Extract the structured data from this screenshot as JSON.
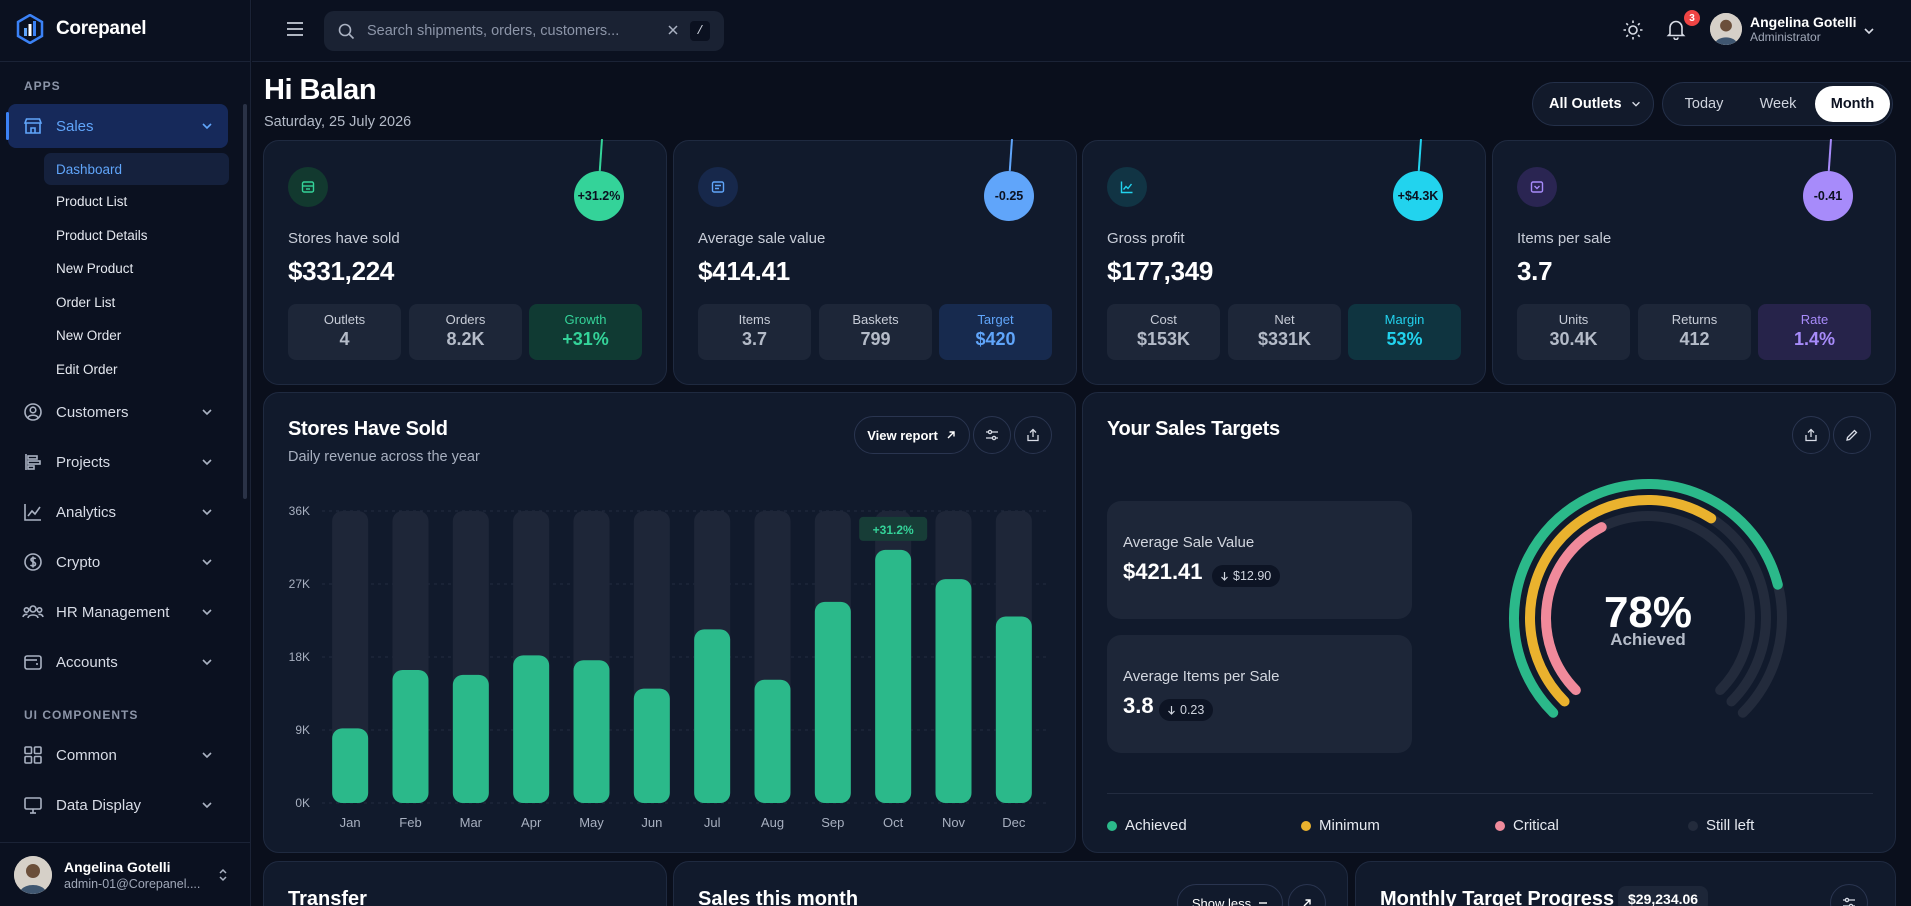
{
  "app": {
    "name": "Corepanel"
  },
  "sidebar": {
    "sections": {
      "apps": "APPS",
      "ui_components": "UI COMPONENTS"
    },
    "items": [
      {
        "label": "Sales",
        "icon": "store-icon"
      },
      {
        "label": "Customers",
        "icon": "user-circle-icon"
      },
      {
        "label": "Projects",
        "icon": "projects-icon"
      },
      {
        "label": "Analytics",
        "icon": "analytics-icon"
      },
      {
        "label": "Crypto",
        "icon": "dollar-icon"
      },
      {
        "label": "HR Management",
        "icon": "people-icon"
      },
      {
        "label": "Accounts",
        "icon": "wallet-icon"
      },
      {
        "label": "Common",
        "icon": "grid-icon"
      },
      {
        "label": "Data Display",
        "icon": "monitor-icon"
      }
    ],
    "sales_submenu": [
      "Dashboard",
      "Product List",
      "Product Details",
      "New Product",
      "Order List",
      "New Order",
      "Edit Order"
    ],
    "user": {
      "name": "Angelina Gotelli",
      "email": "admin-01@Corepanel...."
    }
  },
  "topbar": {
    "search_placeholder": "Search shipments, orders, customers...",
    "search_shortcut": "/",
    "notification_count": "3",
    "user": {
      "name": "Angelina Gotelli",
      "role": "Administrator"
    }
  },
  "header": {
    "greeting": "Hi Balan",
    "date": "Saturday, 25 July 2026",
    "outlet_filter": "All Outlets",
    "periods": [
      "Today",
      "Week",
      "Month"
    ],
    "active_period": "Month"
  },
  "stats": [
    {
      "label": "Stores have sold",
      "value": "$331,224",
      "bubble": "+31.2%",
      "color": "#34d399",
      "minis": [
        {
          "label": "Outlets",
          "value": "4"
        },
        {
          "label": "Orders",
          "value": "8.2K"
        },
        {
          "label": "Growth",
          "value": "+31%"
        }
      ]
    },
    {
      "label": "Average sale value",
      "value": "$414.41",
      "bubble": "-0.25",
      "color": "#60a5fa",
      "minis": [
        {
          "label": "Items",
          "value": "3.7"
        },
        {
          "label": "Baskets",
          "value": "799"
        },
        {
          "label": "Target",
          "value": "$420"
        }
      ]
    },
    {
      "label": "Gross profit",
      "value": "$177,349",
      "bubble": "+$4.3K",
      "color": "#22d3ee",
      "minis": [
        {
          "label": "Cost",
          "value": "$153K"
        },
        {
          "label": "Net",
          "value": "$331K"
        },
        {
          "label": "Margin",
          "value": "53%"
        }
      ]
    },
    {
      "label": "Items per sale",
      "value": "3.7",
      "bubble": "-0.41",
      "color": "#a78bfa",
      "minis": [
        {
          "label": "Units",
          "value": "30.4K"
        },
        {
          "label": "Returns",
          "value": "412"
        },
        {
          "label": "Rate",
          "value": "1.4%"
        }
      ]
    }
  ],
  "revenue_card": {
    "title": "Stores Have Sold",
    "subtitle": "Daily revenue across the year",
    "view_report": "View report"
  },
  "chart_data": {
    "type": "bar",
    "categories": [
      "Jan",
      "Feb",
      "Mar",
      "Apr",
      "May",
      "Jun",
      "Jul",
      "Aug",
      "Sep",
      "Oct",
      "Nov",
      "Dec"
    ],
    "values": [
      9200,
      16400,
      15800,
      18200,
      17600,
      14100,
      21400,
      15200,
      24800,
      31200,
      27600,
      23000
    ],
    "ylim": [
      0,
      36000
    ],
    "yticks": [
      "0K",
      "9K",
      "18K",
      "27K",
      "36K"
    ],
    "highlight": {
      "category": "Oct",
      "label": "+31.2%"
    },
    "grid": true
  },
  "targets_card": {
    "title": "Your Sales Targets",
    "boxes": [
      {
        "label": "Average Sale Value",
        "value": "$421.41",
        "delta": "$12.90"
      },
      {
        "label": "Average Items per Sale",
        "value": "3.8",
        "delta": "0.23"
      }
    ],
    "gauge": {
      "percent": "78%",
      "caption": "Achieved",
      "achieved": 0.78,
      "minimum": 0.62,
      "critical": 0.4
    },
    "legend": [
      {
        "label": "Achieved",
        "color": "#2bb98a"
      },
      {
        "label": "Minimum",
        "color": "#eab22e"
      },
      {
        "label": "Critical",
        "color": "#f08a9b"
      },
      {
        "label": "Still left",
        "color": "#232b3c"
      }
    ]
  },
  "bottom": {
    "transfer_title": "Transfer",
    "sales_month_title": "Sales this month",
    "show_less": "Show less",
    "monthly_target_title": "Monthly Target Progress",
    "monthly_target_value": "$29,234.06"
  }
}
